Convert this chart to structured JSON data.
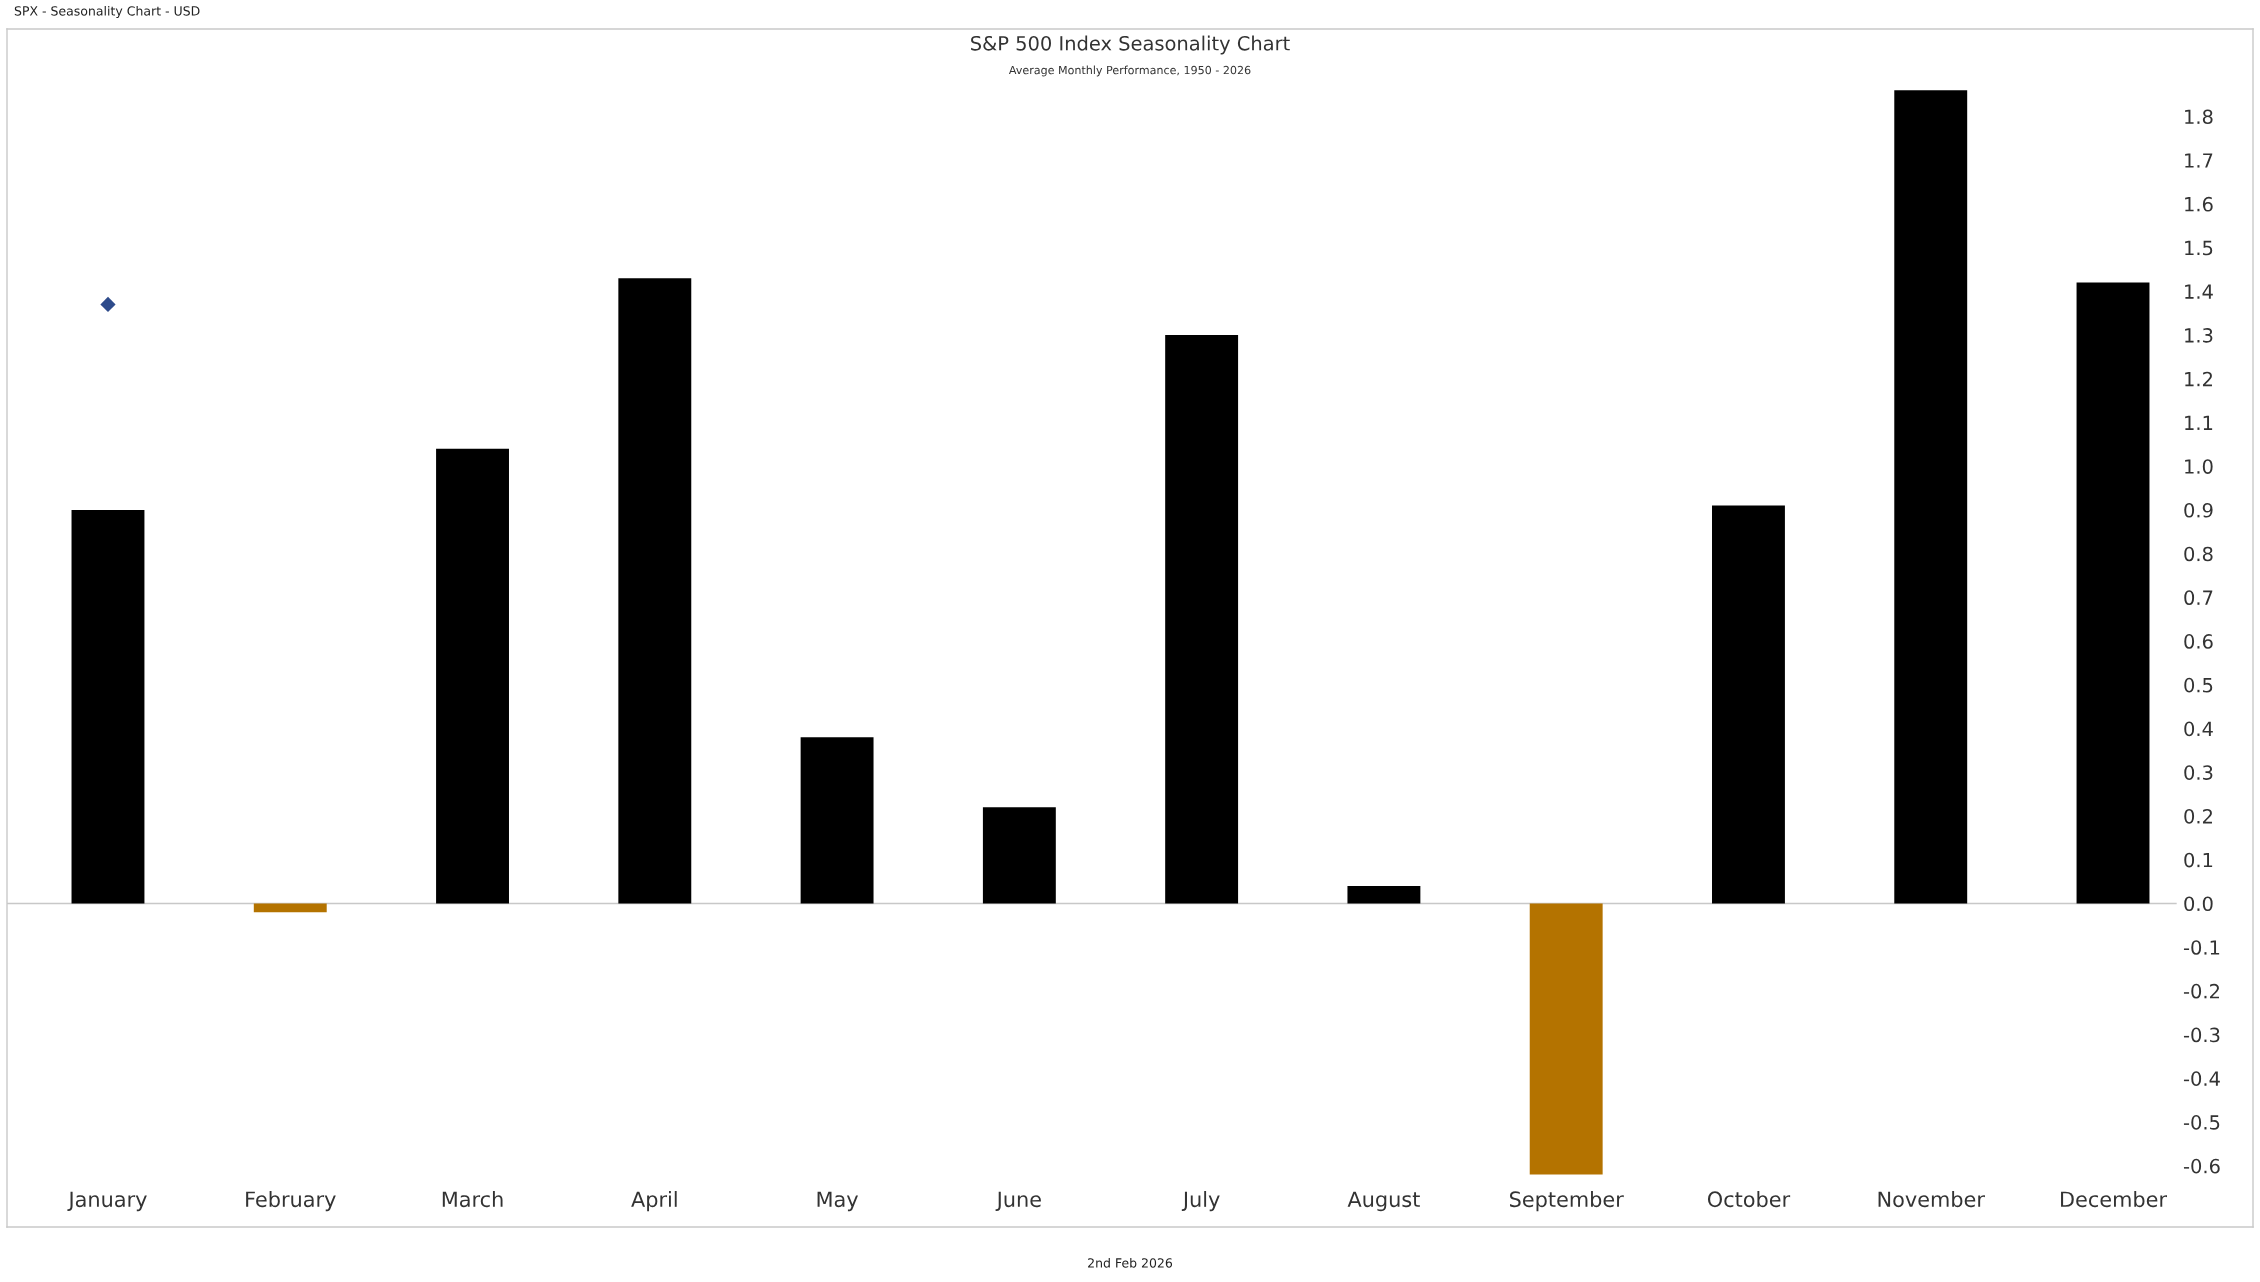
{
  "chart_data": {
    "type": "bar",
    "title": "S&P 500 Index Seasonality Chart",
    "subtitle": "Average Monthly Performance, 1950 - 2026",
    "categories": [
      "January",
      "February",
      "March",
      "April",
      "May",
      "June",
      "July",
      "August",
      "September",
      "October",
      "November",
      "December"
    ],
    "series": [
      {
        "values": [
          0.9,
          -0.02,
          1.04,
          1.43,
          0.38,
          0.22,
          1.3,
          0.04,
          -0.62,
          0.91,
          1.86,
          1.42
        ],
        "colors": [
          "#000000",
          "#b47300",
          "#000000",
          "#000000",
          "#000000",
          "#000000",
          "#000000",
          "#000000",
          "#b47300",
          "#000000",
          "#000000",
          "#000000"
        ]
      },
      {
        "type": "scatter",
        "x": [
          "January"
        ],
        "values": [
          1.37
        ],
        "color": "#2e4b8b",
        "marker": "diamond"
      }
    ],
    "ylim": [
      -0.74,
      2.0
    ],
    "yticks": [
      -0.6,
      -0.5,
      -0.4,
      -0.3,
      -0.2,
      -0.1,
      {
        "value": 0,
        "label": "0.0"
      },
      0.1,
      0.2,
      0.3,
      0.4,
      0.5,
      0.6,
      0.7,
      0.8,
      0.9,
      {
        "value": 1,
        "label": "1.0"
      },
      1.1,
      1.2,
      1.3,
      1.4,
      1.5,
      1.6,
      1.7,
      1.8
    ],
    "ref_lines": [
      {
        "axis": "y",
        "value": 0,
        "color": "#c8c8c8"
      }
    ],
    "annotations": [
      "SPX - Seasonality Chart - USD",
      "2nd Feb 2026"
    ]
  }
}
